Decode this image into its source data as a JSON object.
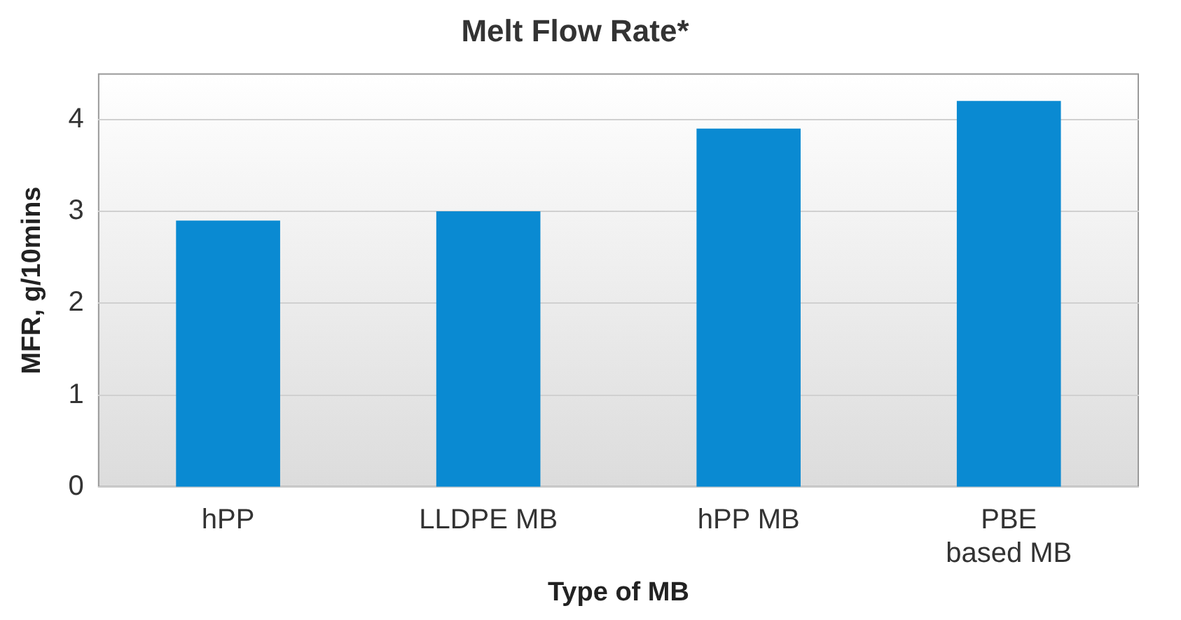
{
  "chart_data": {
    "type": "bar",
    "title": "Melt Flow Rate*",
    "xlabel": "Type of MB",
    "ylabel": "MFR, g/10mins",
    "categories": [
      "hPP",
      "LLDPE MB",
      "hPP MB",
      [
        "PBE",
        "based MB"
      ]
    ],
    "values": [
      2.9,
      3.0,
      3.9,
      4.2
    ],
    "color": "#0a8ad2",
    "ylim": [
      0,
      4.5
    ],
    "yticks": [
      0,
      1,
      2,
      3,
      4
    ],
    "grid": "y",
    "legend": false
  }
}
